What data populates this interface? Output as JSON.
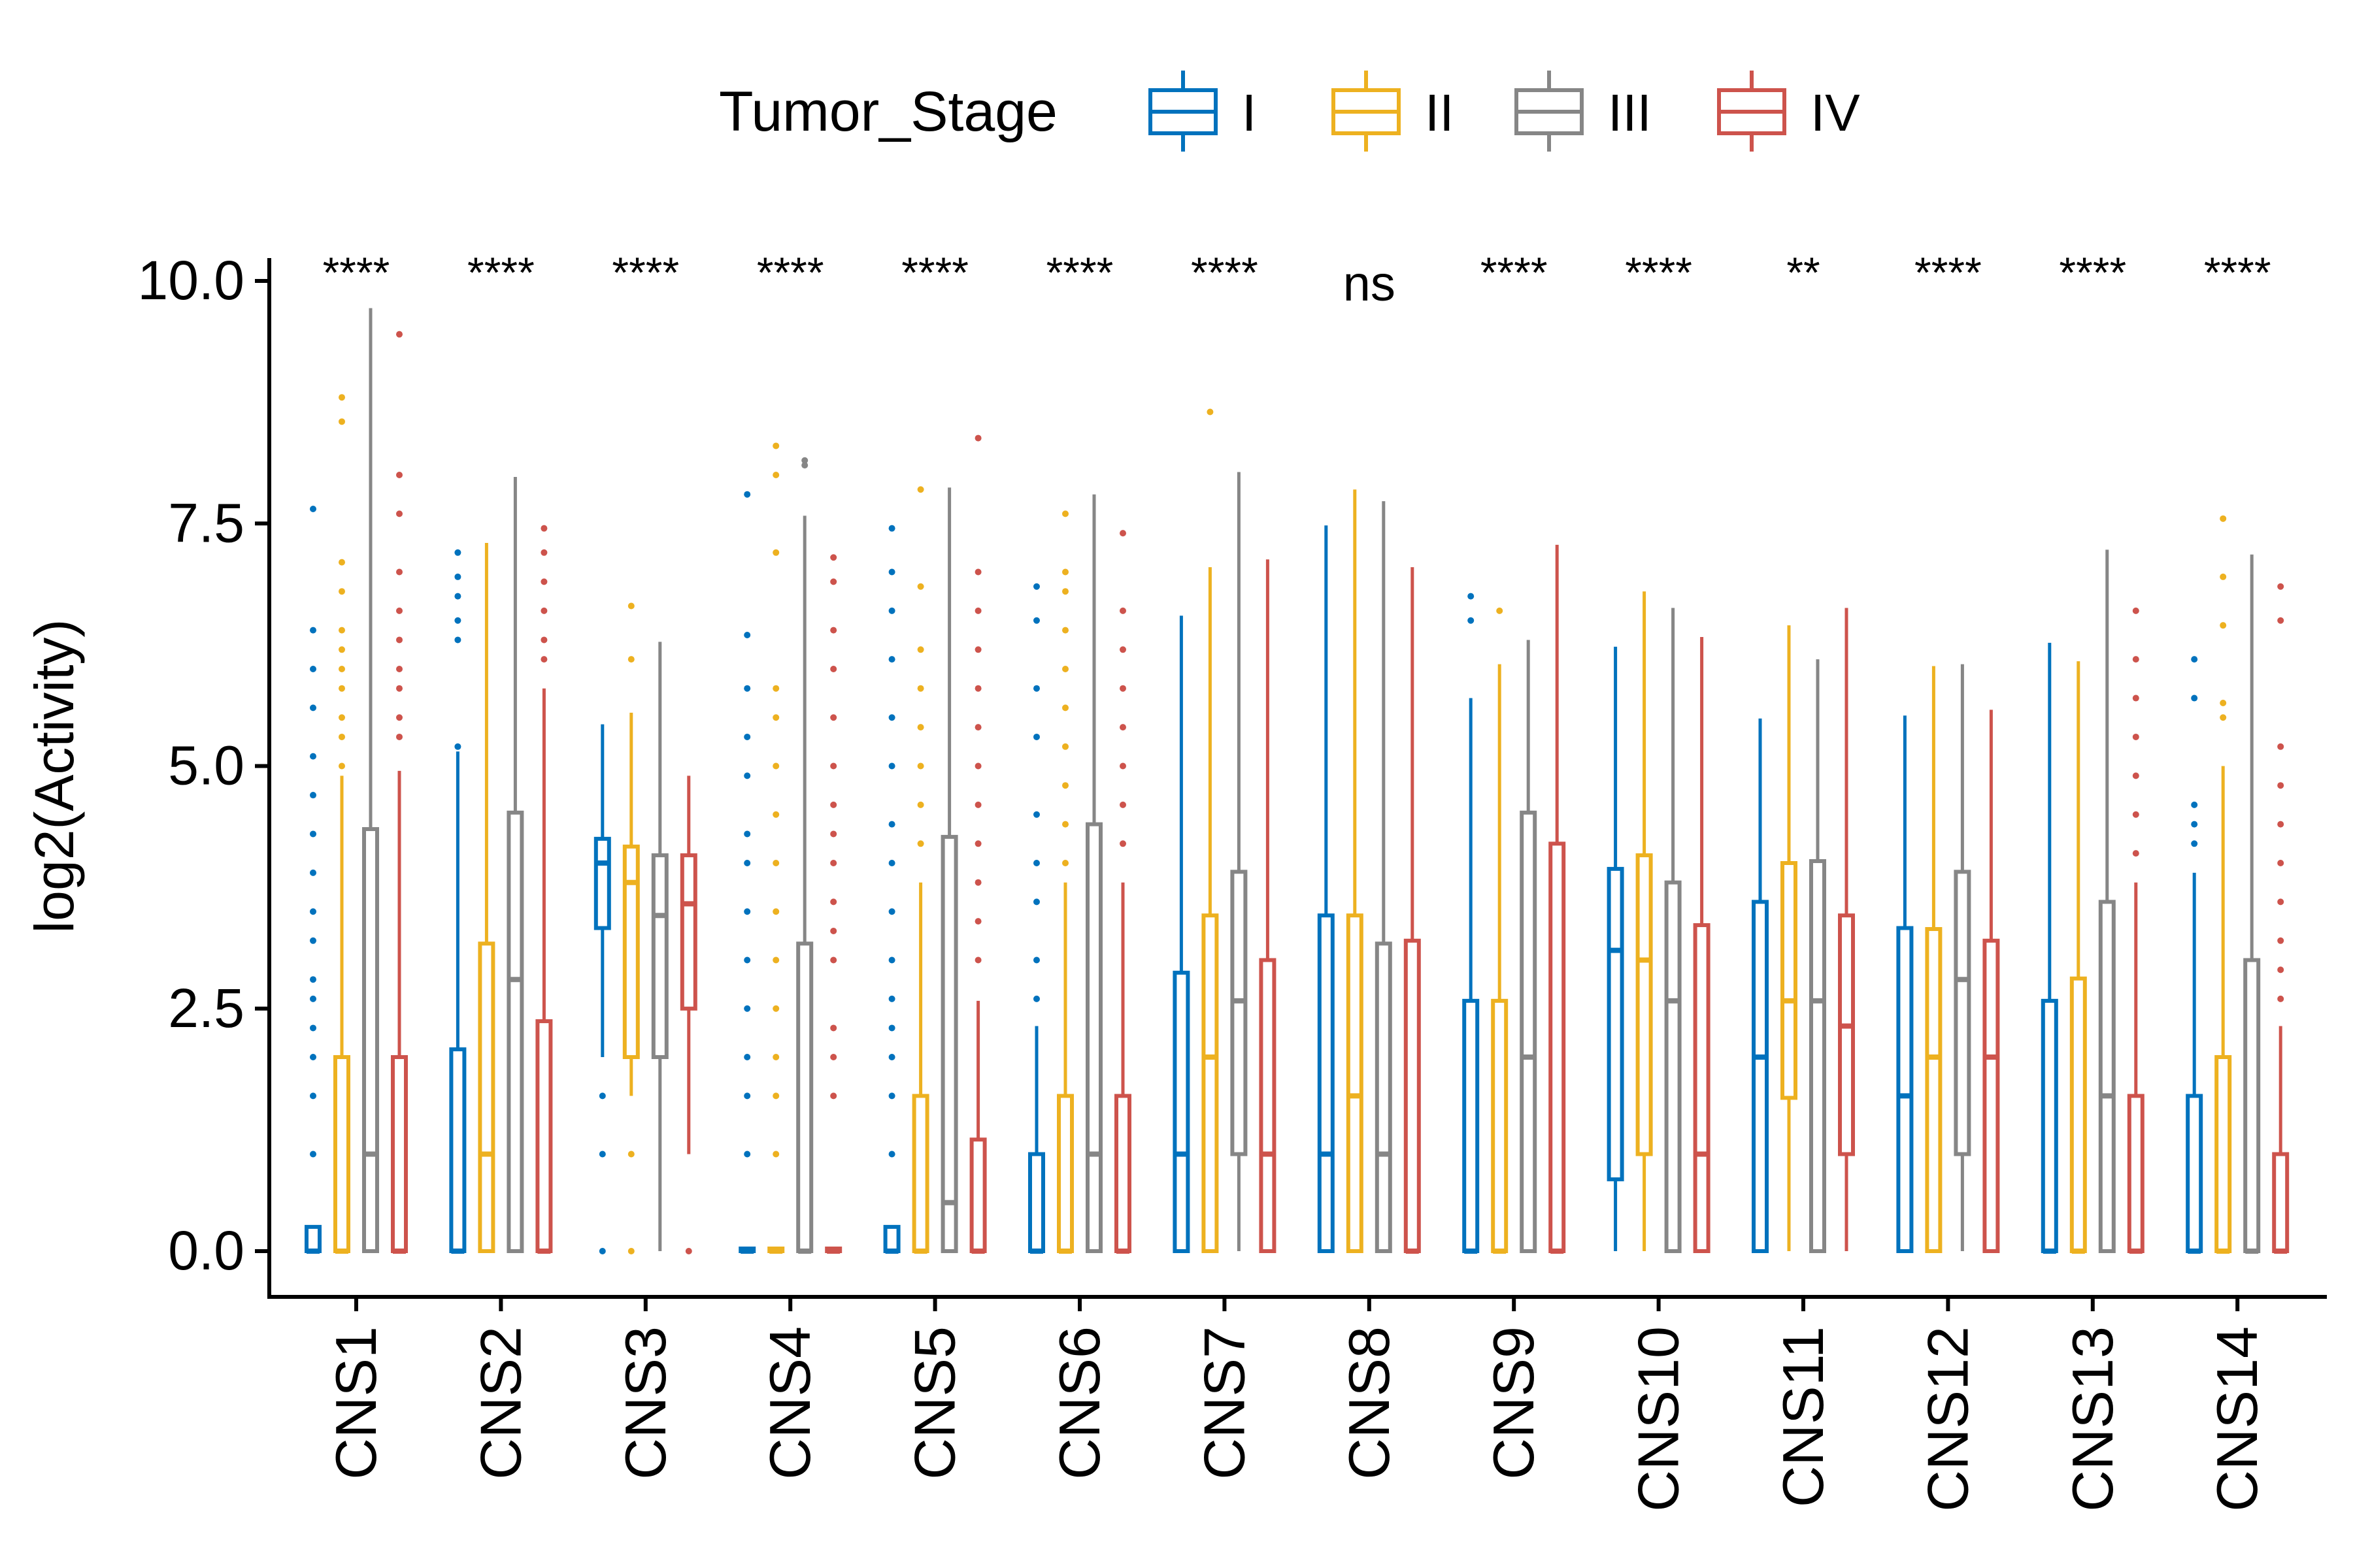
{
  "chart_data": {
    "type": "boxplot",
    "ylabel": "log2(Activity)",
    "xlabel": "",
    "ylim": [
      -0.5,
      10.6
    ],
    "y_ticks": [
      "0.0",
      "2.5",
      "5.0",
      "7.5",
      "10.0"
    ],
    "y_tick_values": [
      0,
      2.5,
      5,
      7.5,
      10
    ],
    "legend": {
      "title": "Tumor_Stage",
      "placement": "top",
      "items": [
        {
          "label": "I",
          "color": "#0072BD"
        },
        {
          "label": "II",
          "color": "#EDB120"
        },
        {
          "label": "III",
          "color": "#868686"
        },
        {
          "label": "IV",
          "color": "#CD534C"
        }
      ]
    },
    "categories": [
      "CNS1",
      "CNS2",
      "CNS3",
      "CNS4",
      "CNS5",
      "CNS6",
      "CNS7",
      "CNS8",
      "CNS9",
      "CNS10",
      "CNS11",
      "CNS12",
      "CNS13",
      "CNS14"
    ],
    "significance": [
      "****",
      "****",
      "****",
      "****",
      "****",
      "****",
      "****",
      "ns",
      "****",
      "****",
      "**",
      "****",
      "****",
      "****"
    ],
    "series": [
      {
        "name": "I",
        "color": "#0072BD",
        "boxes": [
          {
            "min": 0,
            "q1": 0,
            "median": 0,
            "q3": 0.25,
            "max": 0.25,
            "outliers": [
              1.0,
              1.6,
              2.0,
              2.3,
              2.6,
              2.8,
              3.2,
              3.5,
              3.9,
              4.3,
              4.7,
              5.1,
              5.6,
              6.0,
              6.4,
              7.65
            ]
          },
          {
            "min": 0,
            "q1": 0,
            "median": 0,
            "q3": 2.08,
            "max": 5.15,
            "outliers": [
              5.2,
              6.3,
              6.5,
              6.75,
              6.95,
              7.2
            ]
          },
          {
            "min": 2.0,
            "q1": 3.33,
            "median": 4.0,
            "q3": 4.25,
            "max": 5.43,
            "outliers": [
              0.0,
              1.0,
              1.6
            ]
          },
          {
            "min": 0,
            "q1": 0,
            "median": 0,
            "q3": 0,
            "max": 0,
            "outliers": [
              1.0,
              1.6,
              2.0,
              2.5,
              3.0,
              3.5,
              4.0,
              4.3,
              4.9,
              5.3,
              5.8,
              6.35,
              7.8
            ]
          },
          {
            "min": 0,
            "q1": 0,
            "median": 0,
            "q3": 0.25,
            "max": 0.25,
            "outliers": [
              1.0,
              1.6,
              2.0,
              2.3,
              2.6,
              3.0,
              3.5,
              4.0,
              4.4,
              5.0,
              5.5,
              6.1,
              6.6,
              7.0,
              7.45
            ]
          },
          {
            "min": 0,
            "q1": 0,
            "median": 0,
            "q3": 1.0,
            "max": 2.32,
            "outliers": [
              2.6,
              3.0,
              3.6,
              4.0,
              4.5,
              5.3,
              5.8,
              6.5,
              6.85
            ]
          },
          {
            "min": 0,
            "q1": 0,
            "median": 1.0,
            "q3": 2.87,
            "max": 6.55,
            "outliers": []
          },
          {
            "min": 0,
            "q1": 0,
            "median": 1.0,
            "q3": 3.46,
            "max": 7.48,
            "outliers": []
          },
          {
            "min": 0,
            "q1": 0,
            "median": 0,
            "q3": 2.58,
            "max": 5.7,
            "outliers": [
              6.5,
              6.75
            ]
          },
          {
            "min": 0,
            "q1": 0.74,
            "median": 3.1,
            "q3": 3.94,
            "max": 6.23,
            "outliers": []
          },
          {
            "min": 0,
            "q1": 0,
            "median": 2.0,
            "q3": 3.6,
            "max": 5.49,
            "outliers": []
          },
          {
            "min": 0,
            "q1": 0,
            "median": 1.6,
            "q3": 3.33,
            "max": 5.52,
            "outliers": []
          },
          {
            "min": 0,
            "q1": 0,
            "median": 0,
            "q3": 2.58,
            "max": 6.27,
            "outliers": []
          },
          {
            "min": 0,
            "q1": 0,
            "median": 0,
            "q3": 1.6,
            "max": 3.9,
            "outliers": [
              4.2,
              4.4,
              4.6,
              5.7,
              6.1
            ]
          }
        ]
      },
      {
        "name": "II",
        "color": "#EDB120",
        "boxes": [
          {
            "min": 0,
            "q1": 0,
            "median": 0,
            "q3": 2.0,
            "max": 4.9,
            "outliers": [
              5.0,
              5.3,
              5.5,
              5.8,
              6.0,
              6.2,
              6.4,
              6.8,
              7.1,
              8.55,
              8.8
            ]
          },
          {
            "min": 0,
            "q1": 0,
            "median": 1.0,
            "q3": 3.17,
            "max": 7.3,
            "outliers": []
          },
          {
            "min": 1.6,
            "q1": 2.0,
            "median": 3.8,
            "q3": 4.17,
            "max": 5.55,
            "outliers": [
              0.0,
              1.0,
              6.1,
              6.65
            ]
          },
          {
            "min": 0,
            "q1": 0,
            "median": 0,
            "q3": 0,
            "max": 0,
            "outliers": [
              1.0,
              1.6,
              2.0,
              2.5,
              3.0,
              3.5,
              4.0,
              4.5,
              5.0,
              5.5,
              5.8,
              7.2,
              8.0,
              8.3
            ]
          },
          {
            "min": 0,
            "q1": 0,
            "median": 0,
            "q3": 1.6,
            "max": 3.8,
            "outliers": [
              4.2,
              4.6,
              5.0,
              5.4,
              5.8,
              6.2,
              6.85,
              7.85
            ]
          },
          {
            "min": 0,
            "q1": 0,
            "median": 0,
            "q3": 1.6,
            "max": 3.8,
            "outliers": [
              4.0,
              4.4,
              4.8,
              5.2,
              5.6,
              6.0,
              6.4,
              6.8,
              7.0,
              7.6
            ]
          },
          {
            "min": 0,
            "q1": 0,
            "median": 2.0,
            "q3": 3.46,
            "max": 7.05,
            "outliers": [
              8.65
            ]
          },
          {
            "min": 0,
            "q1": 0,
            "median": 1.6,
            "q3": 3.46,
            "max": 7.85,
            "outliers": []
          },
          {
            "min": 0,
            "q1": 0,
            "median": 0,
            "q3": 2.58,
            "max": 6.05,
            "outliers": [
              6.6
            ]
          },
          {
            "min": 0,
            "q1": 1.0,
            "median": 3.0,
            "q3": 4.08,
            "max": 6.8,
            "outliers": []
          },
          {
            "min": 0,
            "q1": 1.58,
            "median": 2.58,
            "q3": 4.0,
            "max": 6.45,
            "outliers": []
          },
          {
            "min": 0,
            "q1": 0,
            "median": 2.0,
            "q3": 3.32,
            "max": 6.03,
            "outliers": []
          },
          {
            "min": 0,
            "q1": 0,
            "median": 0,
            "q3": 2.81,
            "max": 6.08,
            "outliers": []
          },
          {
            "min": 0,
            "q1": 0,
            "median": 0,
            "q3": 2.0,
            "max": 5.0,
            "outliers": [
              5.5,
              5.65,
              6.45,
              6.95,
              7.55
            ]
          }
        ]
      },
      {
        "name": "III",
        "color": "#868686",
        "boxes": [
          {
            "min": 0,
            "q1": 0,
            "median": 1.0,
            "q3": 4.35,
            "max": 9.72,
            "outliers": []
          },
          {
            "min": 0,
            "q1": 0,
            "median": 2.8,
            "q3": 4.52,
            "max": 7.98,
            "outliers": []
          },
          {
            "min": 0,
            "q1": 2.0,
            "median": 3.46,
            "q3": 4.08,
            "max": 6.28,
            "outliers": []
          },
          {
            "min": 0,
            "q1": 0,
            "median": 0,
            "q3": 3.17,
            "max": 7.58,
            "outliers": [
              8.1,
              8.15
            ]
          },
          {
            "min": 0,
            "q1": 0,
            "median": 0.5,
            "q3": 4.27,
            "max": 7.87,
            "outliers": []
          },
          {
            "min": 0,
            "q1": 0,
            "median": 1.0,
            "q3": 4.4,
            "max": 7.8,
            "outliers": []
          },
          {
            "min": 0,
            "q1": 1.0,
            "median": 2.58,
            "q3": 3.91,
            "max": 8.03,
            "outliers": []
          },
          {
            "min": 0,
            "q1": 0,
            "median": 1.0,
            "q3": 3.17,
            "max": 7.73,
            "outliers": []
          },
          {
            "min": 0,
            "q1": 0,
            "median": 2.0,
            "q3": 4.52,
            "max": 6.3,
            "outliers": []
          },
          {
            "min": 0,
            "q1": 0,
            "median": 2.58,
            "q3": 3.8,
            "max": 6.63,
            "outliers": []
          },
          {
            "min": 0,
            "q1": 0,
            "median": 2.58,
            "q3": 4.02,
            "max": 6.1,
            "outliers": []
          },
          {
            "min": 0,
            "q1": 1.0,
            "median": 2.8,
            "q3": 3.91,
            "max": 6.05,
            "outliers": []
          },
          {
            "min": 0,
            "q1": 0,
            "median": 1.6,
            "q3": 3.6,
            "max": 7.23,
            "outliers": []
          },
          {
            "min": 0,
            "q1": 0,
            "median": 0,
            "q3": 3.0,
            "max": 7.18,
            "outliers": []
          }
        ]
      },
      {
        "name": "IV",
        "color": "#CD534C",
        "boxes": [
          {
            "min": 0,
            "q1": 0,
            "median": 0,
            "q3": 2.0,
            "max": 4.95,
            "outliers": [
              5.3,
              5.5,
              5.8,
              6.0,
              6.3,
              6.6,
              7.0,
              7.6,
              8.0,
              9.45
            ]
          },
          {
            "min": 0,
            "q1": 0,
            "median": 0,
            "q3": 2.37,
            "max": 5.8,
            "outliers": [
              6.1,
              6.3,
              6.6,
              6.9,
              7.2,
              7.45
            ]
          },
          {
            "min": 1.0,
            "q1": 2.5,
            "median": 3.58,
            "q3": 4.08,
            "max": 4.9,
            "outliers": [
              0.0
            ]
          },
          {
            "min": 0,
            "q1": 0,
            "median": 0,
            "q3": 0,
            "max": 0,
            "outliers": [
              1.6,
              2.0,
              2.3,
              3.0,
              3.3,
              3.6,
              4.0,
              4.3,
              4.6,
              5.0,
              5.5,
              6.0,
              6.4,
              6.9,
              7.15
            ]
          },
          {
            "min": 0,
            "q1": 0,
            "median": 0,
            "q3": 1.15,
            "max": 2.58,
            "outliers": [
              3.0,
              3.4,
              3.8,
              4.2,
              4.6,
              5.0,
              5.4,
              5.8,
              6.2,
              6.6,
              7.0,
              8.38
            ]
          },
          {
            "min": 0,
            "q1": 0,
            "median": 0,
            "q3": 1.6,
            "max": 3.8,
            "outliers": [
              4.2,
              4.6,
              5.0,
              5.4,
              5.8,
              6.2,
              6.6,
              7.4
            ]
          },
          {
            "min": 0,
            "q1": 0,
            "median": 1.0,
            "q3": 3.0,
            "max": 7.13,
            "outliers": []
          },
          {
            "min": 0,
            "q1": 0,
            "median": 0,
            "q3": 3.2,
            "max": 7.05,
            "outliers": []
          },
          {
            "min": 0,
            "q1": 0,
            "median": 0,
            "q3": 4.2,
            "max": 7.28,
            "outliers": []
          },
          {
            "min": 0,
            "q1": 0,
            "median": 1.0,
            "q3": 3.36,
            "max": 6.33,
            "outliers": []
          },
          {
            "min": 0,
            "q1": 1.0,
            "median": 2.32,
            "q3": 3.46,
            "max": 6.63,
            "outliers": []
          },
          {
            "min": 0,
            "q1": 0,
            "median": 2.0,
            "q3": 3.2,
            "max": 5.58,
            "outliers": []
          },
          {
            "min": 0,
            "q1": 0,
            "median": 0,
            "q3": 1.6,
            "max": 3.8,
            "outliers": [
              4.1,
              4.5,
              4.9,
              5.3,
              5.7,
              6.1,
              6.6
            ]
          },
          {
            "min": 0,
            "q1": 0,
            "median": 0,
            "q3": 1.0,
            "max": 2.32,
            "outliers": [
              2.6,
              2.9,
              3.2,
              3.6,
              4.0,
              4.4,
              4.8,
              5.2,
              6.5,
              6.85
            ]
          }
        ]
      }
    ]
  }
}
